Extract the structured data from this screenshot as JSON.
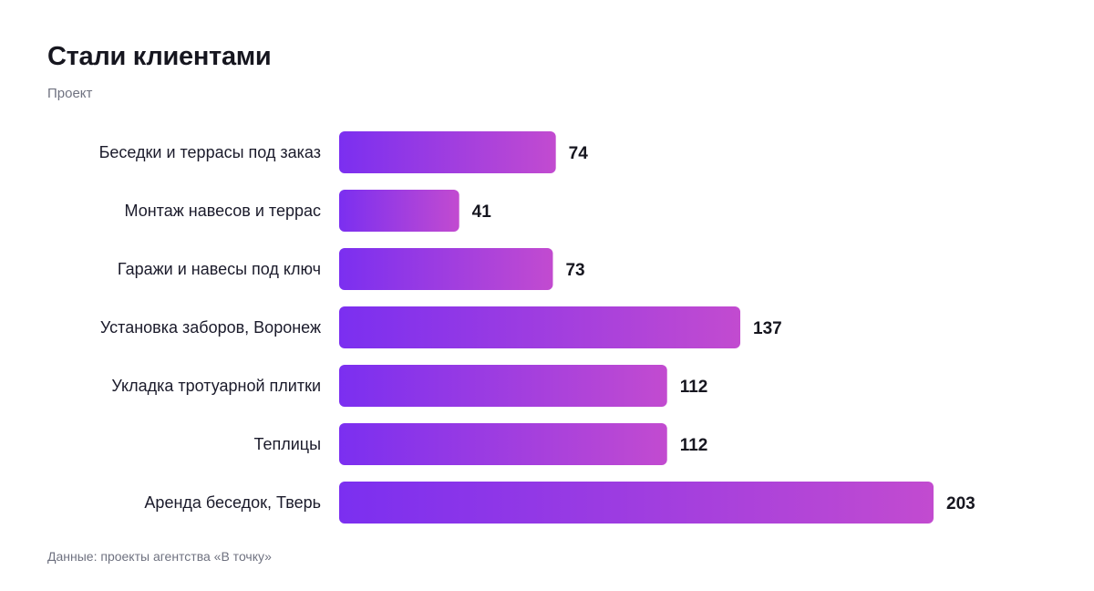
{
  "chart_data": {
    "type": "bar",
    "orientation": "horizontal",
    "title": "Стали клиентами",
    "subtitle": "Проект",
    "source": "Данные: проекты агентства «В точку»",
    "categories": [
      "Беседки и террасы под заказ",
      "Монтаж навесов и террас",
      "Гаражи и навесы под ключ",
      "Установка заборов, Воронеж",
      "Укладка тротуарной плитки",
      "Теплицы",
      "Аренда беседок, Тверь"
    ],
    "values": [
      74,
      41,
      73,
      137,
      112,
      112,
      203
    ],
    "xlim": [
      0,
      203
    ],
    "grid": false,
    "legend": "none",
    "colors": {
      "bar_start": "#7b2ff0",
      "bar_end": "#c24bd0"
    }
  }
}
